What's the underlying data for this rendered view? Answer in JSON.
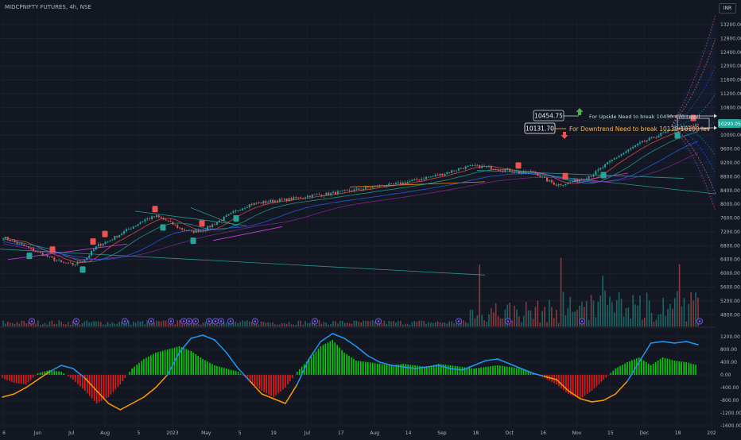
{
  "header": {
    "title": "MIDCPNIFTY FUTURES, 4h, NSE",
    "currency": "INR"
  },
  "colors": {
    "background": "#131722",
    "up": "#26a69a",
    "down": "#ef5350",
    "osc_up": "#00e600",
    "osc_down": "#ff1a1a",
    "blue_line": "#2196f3",
    "orange_line": "#ff9800",
    "annotation_text": "#ffb74d",
    "upside_text": "#b2dfdb"
  },
  "chart_data": {
    "type": "line",
    "y_axis": {
      "ticks": [
        13200,
        12800,
        12400,
        12000,
        11600,
        11200,
        10800,
        10400,
        10000,
        9600,
        9200,
        8800,
        8400,
        8000,
        7600,
        7200,
        6800,
        6400,
        6000,
        5600,
        5200,
        4800
      ],
      "labels": [
        "13200.00",
        "12800.00",
        "12400.00",
        "12000.00",
        "11600.00",
        "11200.00",
        "10800.00",
        "10400.00",
        "10000.00",
        "9600.00",
        "9200.00",
        "8800.00",
        "8400.00",
        "8000.00",
        "7600.00",
        "7200.00",
        "6800.00",
        "6400.00",
        "6000.00",
        "5600.00",
        "5200.00",
        "4800.00"
      ],
      "range": [
        4600,
        13500
      ]
    },
    "x_axis": {
      "labels": [
        "6",
        "Jun",
        "Jul",
        "Aug",
        "5",
        "2023",
        "May",
        "5",
        "19",
        "Jul",
        "17",
        "Aug",
        "14",
        "Sep",
        "18",
        "Oct",
        "16",
        "Nov",
        "15",
        "Dec",
        "18",
        "202"
      ]
    },
    "price_points": [
      7050,
      6900,
      6750,
      6600,
      6450,
      6300,
      6250,
      6420,
      6800,
      6950,
      7150,
      7350,
      7550,
      7650,
      7500,
      7300,
      7200,
      7250,
      7450,
      7650,
      7850,
      8000,
      8050,
      8100,
      8130,
      8180,
      8250,
      8280,
      8320,
      8370,
      8420,
      8480,
      8530,
      8560,
      8620,
      8700,
      8780,
      8850,
      8950,
      9060,
      9100,
      9080,
      9020,
      8980,
      8900,
      8950,
      8720,
      8560,
      8620,
      8720,
      8850,
      9100,
      9350,
      9550,
      9750,
      9900,
      10050,
      10180,
      10250,
      10290
    ],
    "current_price": {
      "value": 10290.05,
      "label": "10290.05"
    },
    "levels": [
      {
        "name": "upside",
        "value": 10454.75,
        "label": "10454.75",
        "text": "For Upside Need to break 10450-470 Level"
      },
      {
        "name": "downtrend",
        "value": 10131.7,
        "label": "10131.70",
        "text": "For Downtrend Need to break 10130-10100 lev"
      }
    ],
    "oscillator": {
      "y_axis": {
        "ticks": [
          1200,
          800,
          400,
          0,
          -400,
          -800,
          -1200,
          -1600
        ],
        "labels": [
          "1200.00",
          "800.00",
          "400.00",
          "0.00",
          "-400.00",
          "-800.00",
          "-1200.00",
          "-1600.00"
        ],
        "range": [
          -1700,
          1450
        ]
      },
      "histogram": [
        -100,
        -250,
        -300,
        50,
        150,
        100,
        -150,
        -500,
        -900,
        -700,
        -300,
        200,
        500,
        700,
        800,
        900,
        750,
        500,
        300,
        200,
        100,
        -200,
        -500,
        -700,
        -400,
        100,
        500,
        900,
        1100,
        700,
        450,
        400,
        350,
        300,
        350,
        300,
        250,
        350,
        300,
        250,
        200,
        250,
        300,
        250,
        200,
        50,
        -100,
        -300,
        -600,
        -750,
        -500,
        -150,
        200,
        400,
        550,
        300,
        550,
        450,
        400,
        300
      ],
      "signal": [
        -700,
        -600,
        -400,
        -150,
        100,
        300,
        200,
        -100,
        -500,
        -900,
        -1100,
        -900,
        -700,
        -400,
        0,
        700,
        1150,
        1250,
        1100,
        700,
        200,
        -200,
        -600,
        -750,
        -900,
        -300,
        500,
        1050,
        1300,
        1150,
        900,
        600,
        400,
        300,
        250,
        200,
        250,
        300,
        200,
        150,
        300,
        450,
        500,
        350,
        200,
        50,
        -50,
        -150,
        -500,
        -750,
        -850,
        -800,
        -600,
        -200,
        400,
        1000,
        1050,
        1000,
        1050,
        950
      ]
    }
  }
}
